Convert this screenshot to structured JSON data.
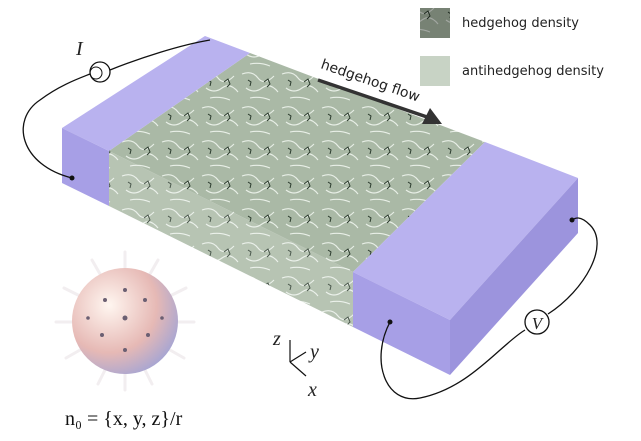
{
  "legend": [
    {
      "label": "hedgehog density"
    },
    {
      "label": "antihedgehog density"
    }
  ],
  "flow_label": "hedgehog flow",
  "current_label": "I",
  "voltage_label": "V",
  "axes": {
    "z": "z",
    "y": "y",
    "x": "x"
  },
  "formula": "n₀ = {x, y, z}/r"
}
